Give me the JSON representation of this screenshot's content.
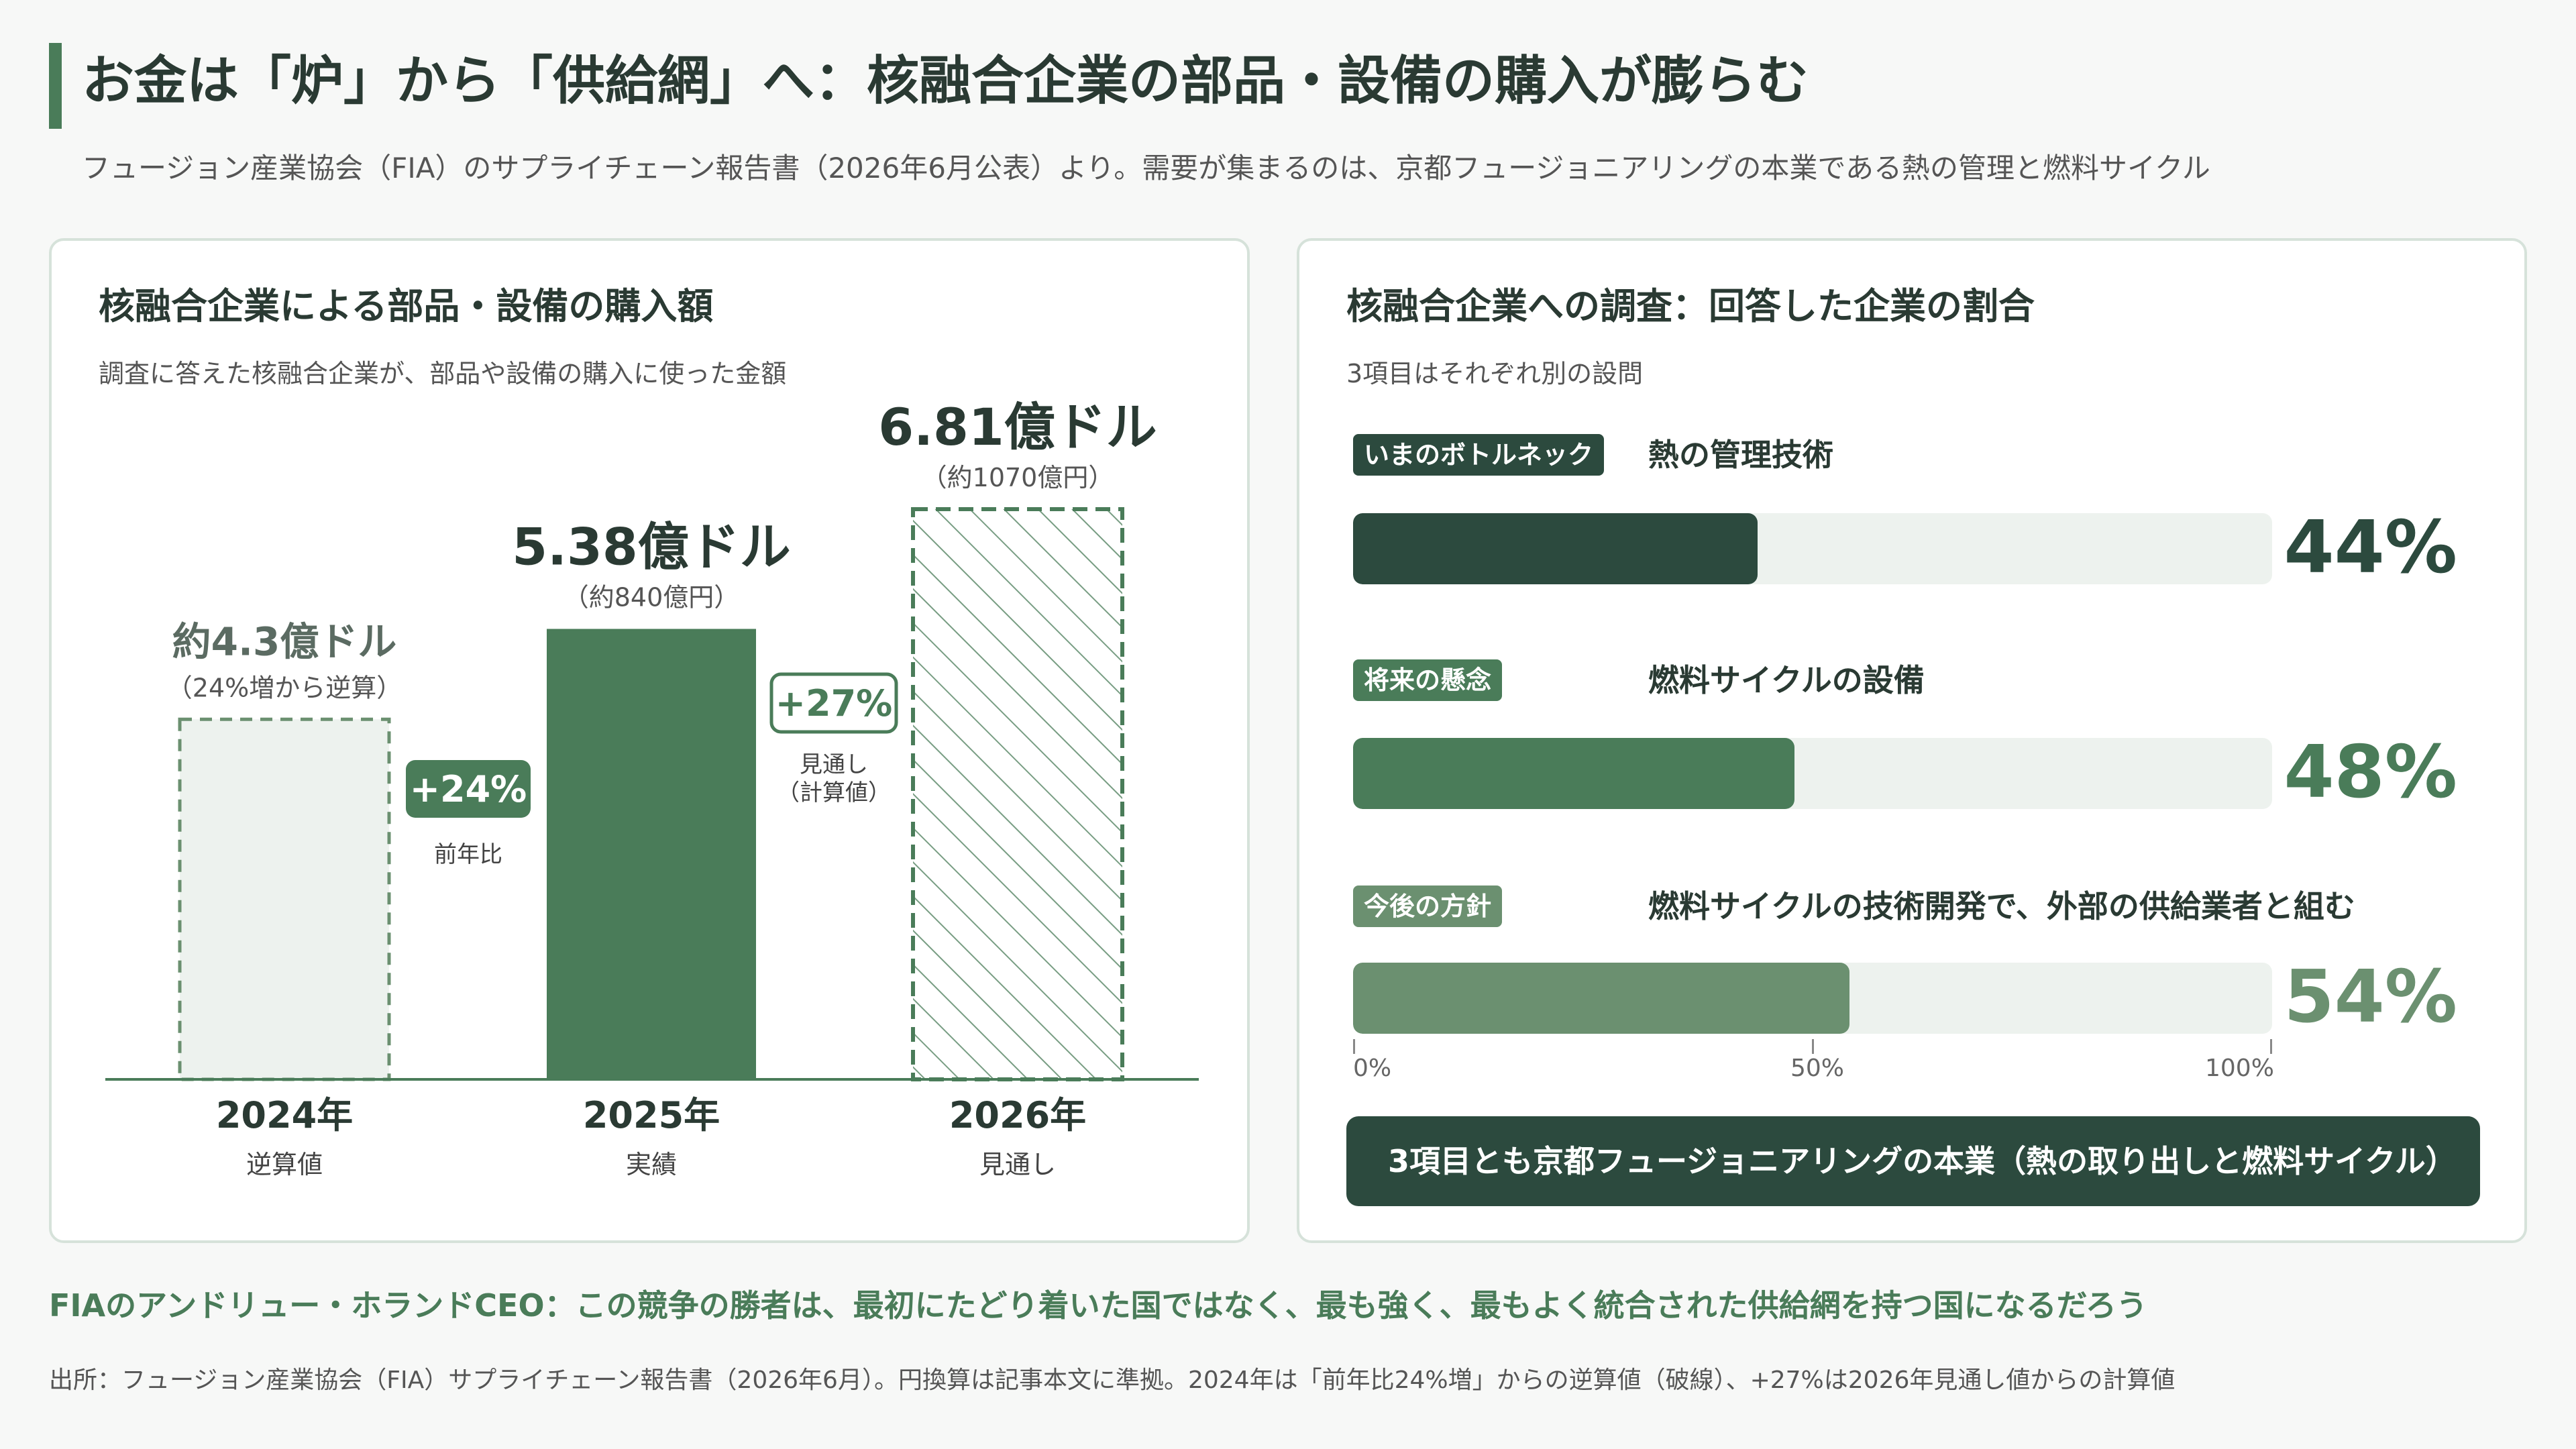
{
  "title": "お金は「炉」から「供給網」へ：核融合企業の部品・設備の購入が膨らむ",
  "subtitle": "フュージョン産業協会（FIA）のサプライチェーン報告書（2026年6月公表）より。需要が集まるのは、京都フュージョニアリングの本業である熱の管理と燃料サイクル",
  "colors": {
    "dark": "#2c4a3e",
    "green": "#4a7c59",
    "light_green": "#6b9070",
    "pale": "#edf2ee"
  },
  "chart_data": [
    {
      "type": "bar",
      "title": "核融合企業による部品・設備の購入額",
      "subtitle": "調査に答えた核融合企業が、部品や設備の購入に使った金額",
      "unit": "億ドル",
      "ylim": [
        0,
        6.81
      ],
      "categories": [
        "2024年",
        "2025年",
        "2026年"
      ],
      "category_notes": [
        "逆算値",
        "実績",
        "見通し"
      ],
      "values": [
        4.3,
        5.38,
        6.81
      ],
      "value_labels": [
        "約4.3億ドル",
        "5.38億ドル",
        "6.81億ドル"
      ],
      "value_sublabels": [
        "（24%増から逆算）",
        "（約840億円）",
        "（約1070億円）"
      ],
      "styles": [
        "dashed",
        "solid",
        "hatched"
      ],
      "growth": [
        {
          "label": "+24%",
          "note": "前年比"
        },
        {
          "label": "+27%",
          "note": "見通し\n（計算値）"
        }
      ]
    },
    {
      "type": "bar",
      "orientation": "horizontal",
      "title": "核融合企業への調査：回答した企業の割合",
      "subtitle": "3項目はそれぞれ別の設問",
      "xlim": [
        0,
        100
      ],
      "x_ticks": [
        "0%",
        "50%",
        "100%"
      ],
      "rows": [
        {
          "badge": "いまのボトルネック",
          "label": "熱の管理技術",
          "value": 44,
          "value_label": "44%",
          "color": "#2c4a3e"
        },
        {
          "badge": "将来の懸念",
          "label": "燃料サイクルの設備",
          "value": 48,
          "value_label": "48%",
          "color": "#4a7c59"
        },
        {
          "badge": "今後の方針",
          "label": "燃料サイクルの技術開発で、外部の供給業者と組む",
          "value": 54,
          "value_label": "54%",
          "color": "#6b9070"
        }
      ],
      "note": "3項目とも京都フュージョニアリングの本業（熱の取り出しと燃料サイクル）"
    }
  ],
  "quote": "FIAのアンドリュー・ホランドCEO：この競争の勝者は、最初にたどり着いた国ではなく、最も強く、最もよく統合された供給網を持つ国になるだろう",
  "source": "出所：フュージョン産業協会（FIA）サプライチェーン報告書（2026年6月）。円換算は記事本文に準拠。2024年は「前年比24%増」からの逆算値（破線）、+27%は2026年見通し値からの計算値"
}
